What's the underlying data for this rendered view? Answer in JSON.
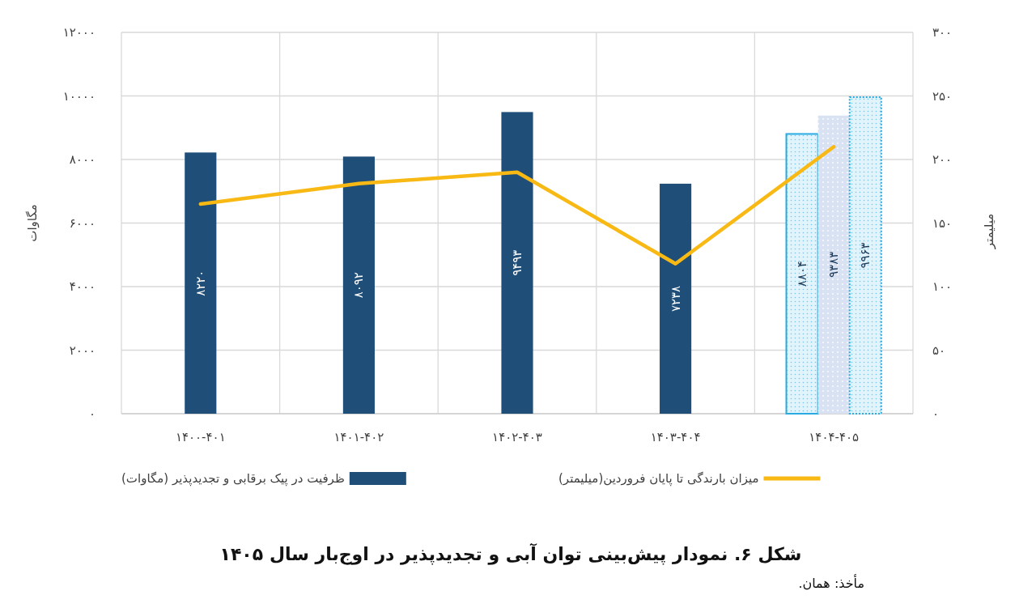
{
  "chart_data": {
    "type": "bar",
    "title": "شکل ۶. نمودار پیش‌بینی توان آبی و تجدیدپذیر در اوج‌بار سال ۱۴۰۵",
    "ylabel": "مگاوات",
    "y2label": "میلیمتر",
    "categories": [
      "۱۴۰۰-۴۰۱",
      "۱۴۰۱-۴۰۲",
      "۱۴۰۲-۴۰۳",
      "۱۴۰۳-۴۰۴",
      "۱۴۰۴-۴۰۵"
    ],
    "series": [
      {
        "name": "ظرفیت در پیک برقابی و تجدیدپذیر (مگاوات)",
        "color": "#1f4e79",
        "values": [
          8220,
          8092,
          9493,
          7238,
          null
        ],
        "value_labels": [
          "۸۲۲۰",
          "۸۰۹۲",
          "۹۴۹۳",
          "۷۲۳۸",
          null
        ]
      },
      {
        "color": "#29abe2",
        "values": [
          null,
          null,
          null,
          null,
          8804
        ],
        "value_labels": [
          null,
          null,
          null,
          null,
          "۸۸۰۴"
        ]
      },
      {
        "color": "#d9e2f3",
        "values": [
          null,
          null,
          null,
          null,
          9383
        ],
        "value_labels": [
          null,
          null,
          null,
          null,
          "۹۳۸۳"
        ]
      },
      {
        "color": "#29abe2",
        "line_style": "dotted",
        "values": [
          null,
          null,
          null,
          null,
          9963
        ],
        "value_labels": [
          null,
          null,
          null,
          null,
          "۹۹۶۳"
        ]
      },
      {
        "name": "میزان بارندگی تا پایان فروردین(میلیمتر)",
        "type": "line",
        "axis": "y2",
        "color": "#f9b915",
        "values": [
          165,
          181,
          190,
          118,
          210
        ]
      }
    ],
    "ylim": [
      0,
      12000
    ],
    "yticks": [
      {
        "value": 0,
        "label": "۰"
      },
      {
        "value": 2000,
        "label": "۲۰۰۰"
      },
      {
        "value": 4000,
        "label": "۴۰۰۰"
      },
      {
        "value": 6000,
        "label": "۶۰۰۰"
      },
      {
        "value": 8000,
        "label": "۸۰۰۰"
      },
      {
        "value": 10000,
        "label": "۱۰۰۰۰"
      },
      {
        "value": 12000,
        "label": "۱۲۰۰۰"
      }
    ],
    "y2lim": [
      0,
      300
    ],
    "y2ticks": [
      {
        "value": 0,
        "label": "۰"
      },
      {
        "value": 50,
        "label": "۵۰"
      },
      {
        "value": 100,
        "label": "۱۰۰"
      },
      {
        "value": 150,
        "label": "۱۵۰"
      },
      {
        "value": 200,
        "label": "۲۰۰"
      },
      {
        "value": 250,
        "label": "۲۵۰"
      },
      {
        "value": 300,
        "label": "۳۰۰"
      }
    ],
    "grid": true,
    "legend": "bottom",
    "annotations": [
      "مأخذ: همان."
    ]
  }
}
